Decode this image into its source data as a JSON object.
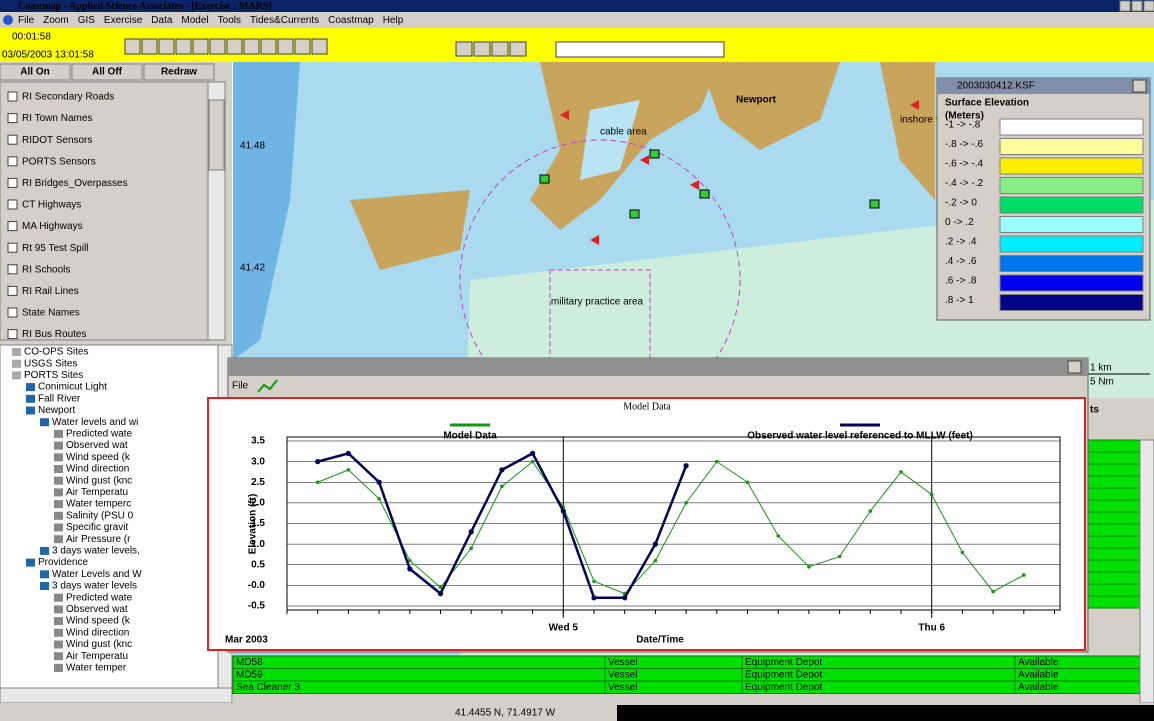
{
  "window": {
    "title": "Coastmap - Applied Science Associates - [Exercise : MARS]",
    "menu": [
      "File",
      "Zoom",
      "GIS",
      "Exercise",
      "Data",
      "Model",
      "Tools",
      "Tides&Currents",
      "Coastmap",
      "Help"
    ]
  },
  "toolbar": {
    "clock": "00:01:58",
    "datetime": "03/05/2003 13:01:58"
  },
  "layer_panel": {
    "buttons": [
      "All On",
      "All Off",
      "Redraw"
    ],
    "layers": [
      "RI Secondary Roads",
      "RI Town Names",
      "RIDOT Sensors",
      "PORTS Sensors",
      "RI Bridges_Overpasses",
      "CT Highways",
      "MA Highways",
      "Rt 95 Test Spill",
      "RI Schools",
      "RI Rail Lines",
      "State Names",
      "RI Bus Routes"
    ]
  },
  "tree": [
    {
      "label": "CO-OPS Sites"
    },
    {
      "label": "USGS Sites"
    },
    {
      "label": "PORTS Sites",
      "children": [
        {
          "label": "Conimicut Light"
        },
        {
          "label": "Fall River"
        },
        {
          "label": "Newport",
          "children": [
            {
              "label": "Water levels and wi",
              "children": [
                {
                  "label": "Predicted wate"
                },
                {
                  "label": "Observed wat"
                },
                {
                  "label": "Wind speed (k"
                },
                {
                  "label": "Wind direction"
                },
                {
                  "label": "Wind gust (knc"
                },
                {
                  "label": "Air Temperatu"
                },
                {
                  "label": "Water temperc"
                },
                {
                  "label": "Salinity (PSU 0"
                },
                {
                  "label": "Specific gravit"
                },
                {
                  "label": "Air Pressure (r"
                }
              ]
            },
            {
              "label": "3 days water levels,"
            }
          ]
        },
        {
          "label": "Providence",
          "children": [
            {
              "label": "Water Levels and W"
            },
            {
              "label": "3 days water levels",
              "children": [
                {
                  "label": "Predicted wate"
                },
                {
                  "label": "Observed wat"
                },
                {
                  "label": "Wind speed (k"
                },
                {
                  "label": "Wind direction"
                },
                {
                  "label": "Wind gust (knc"
                },
                {
                  "label": "Air Temperatu"
                },
                {
                  "label": "Water temper"
                }
              ]
            }
          ]
        }
      ]
    }
  ],
  "map": {
    "labels": [
      "Newport",
      "inshore traffic zone",
      "cable area",
      "military practice area",
      "41.48",
      "41.42"
    ],
    "scale": [
      "1 km",
      "5 Nm"
    ]
  },
  "legend_window": {
    "title": "2003030412.KSF",
    "heading": "Surface Elevation",
    "units": "(Meters)",
    "entries": [
      {
        "label": "-1 -> -.8",
        "color": "#ffffff"
      },
      {
        "label": "-.8 -> -.6",
        "color": "#ffff99"
      },
      {
        "label": "-.6 -> -.4",
        "color": "#ffee00"
      },
      {
        "label": "-.4 -> -.2",
        "color": "#88ee88"
      },
      {
        "label": "-.2 -> 0",
        "color": "#00dd66"
      },
      {
        "label": "0 -> .2",
        "color": "#99ffff"
      },
      {
        "label": ".2 -> .4",
        "color": "#00eeff"
      },
      {
        "label": ".4 -> .6",
        "color": "#0077ee"
      },
      {
        "label": ".6 -> .8",
        "color": "#0000ee"
      },
      {
        "label": ".8 -> 1",
        "color": "#000088"
      }
    ]
  },
  "chart_window": {
    "menu": "File"
  },
  "side_list": {
    "header": "ts"
  },
  "table": {
    "rows": [
      [
        "MD58",
        "Vessel",
        "Equipment Depot",
        "Available"
      ],
      [
        "MD59",
        "Vessel",
        "Equipment Depot",
        "Available"
      ],
      [
        "Sea Cleaner 3",
        "Vessel",
        "Equipment Depot",
        "Available"
      ]
    ]
  },
  "status_bar": {
    "coordinates": "41.4455 N, 71.4917 W"
  },
  "chart_data": {
    "type": "line",
    "title": "Model Data",
    "xlabel": "Date/Time",
    "x_period": "Mar 2003",
    "ylabel": "Elevation (ft)",
    "categories": [
      null,
      null,
      null,
      null,
      null,
      null,
      null,
      null,
      null,
      "Wed 5",
      null,
      null,
      null,
      null,
      null,
      null,
      null,
      null,
      null,
      null,
      null,
      "Thu 6",
      null,
      null,
      null,
      null
    ],
    "series": [
      {
        "name": "Model Data",
        "color": "#119911",
        "values": [
          null,
          2.5,
          2.8,
          2.1,
          0.6,
          -0.05,
          0.9,
          2.4,
          3.0,
          1.9,
          0.1,
          -0.2,
          0.6,
          2.0,
          3.0,
          2.5,
          1.2,
          0.45,
          0.7,
          1.8,
          2.75,
          2.2,
          0.8,
          -0.15,
          0.25,
          null
        ]
      },
      {
        "name": "Observed water level referenced to MLLW (feet)",
        "color": "#000055",
        "values": [
          null,
          3.0,
          3.2,
          2.5,
          0.4,
          -0.2,
          1.3,
          2.8,
          3.2,
          1.8,
          -0.3,
          -0.3,
          1.0,
          2.9,
          null,
          null,
          null,
          null,
          null,
          null,
          null,
          null,
          null,
          null,
          null,
          null
        ]
      }
    ],
    "ylim": [
      -0.5,
      3.5
    ],
    "yticks": [
      -0.5,
      {
        "value": 0,
        "label": "-0.0"
      },
      0.5,
      {
        "value": 1,
        "label": "1.0"
      },
      1.5,
      {
        "value": 2,
        "label": "2.0"
      },
      2.5,
      {
        "value": 3,
        "label": "3.0"
      },
      3.5
    ],
    "grid": true
  }
}
